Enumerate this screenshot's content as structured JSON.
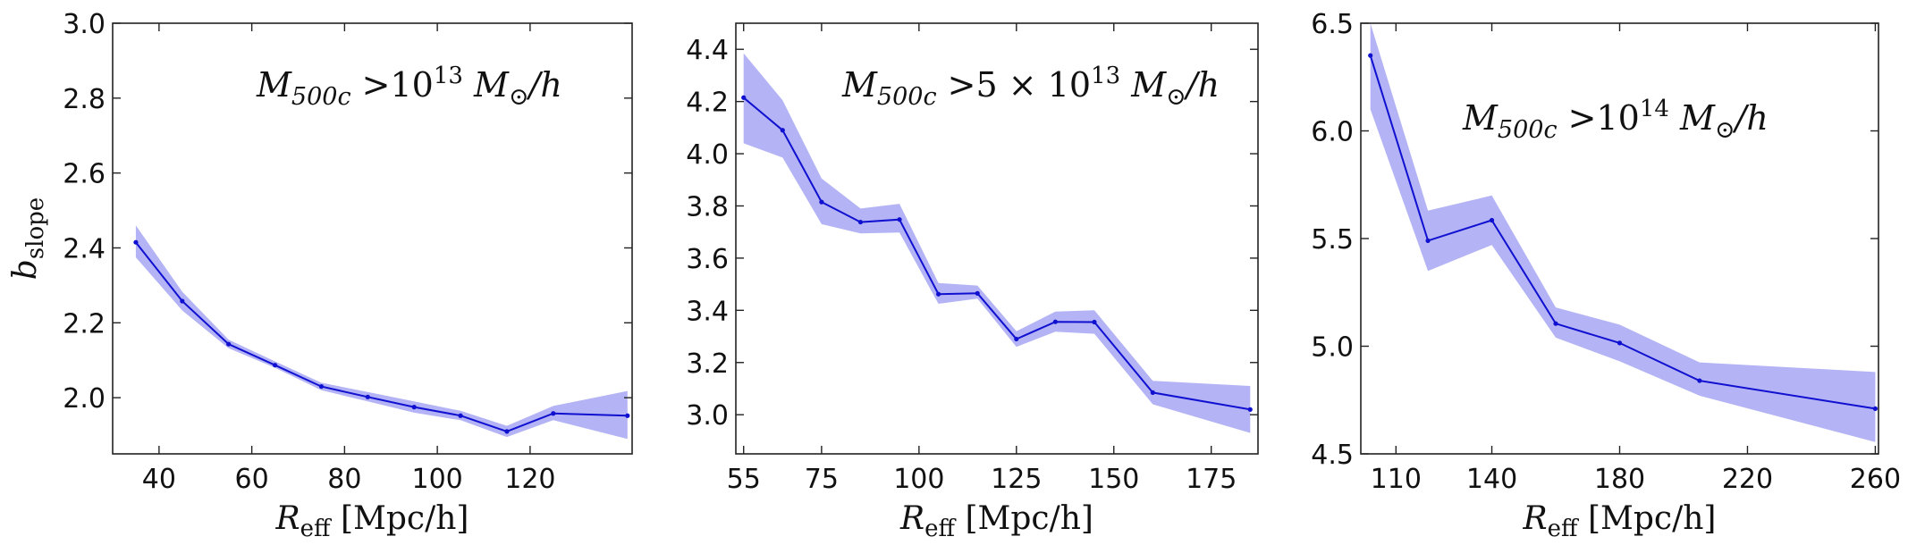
{
  "chart_data": [
    {
      "type": "line",
      "annotation": {
        "m": "M",
        "m_sub": "500c",
        "op": " >",
        "mant": "",
        "base": "10",
        "exp": "13",
        "unit_m": " M",
        "unit_sub": "⊙",
        "unit_rest": "/h"
      },
      "ylabel": {
        "var": "b",
        "sub": "slope"
      },
      "xlabel": {
        "var": "R",
        "sub": "eff",
        "unit": " [Mpc/h]"
      },
      "xlim": [
        30,
        142
      ],
      "ylim": [
        1.85,
        3.0
      ],
      "xticks": [
        40,
        60,
        80,
        100,
        120
      ],
      "yticks": [
        2.0,
        2.2,
        2.4,
        2.6,
        2.8,
        3.0
      ],
      "ytick_labels": [
        "2.0",
        "2.2",
        "2.4",
        "2.6",
        "2.8",
        "3.0"
      ],
      "series": [
        {
          "name": "b_slope",
          "x": [
            35,
            45,
            55,
            65,
            75,
            85,
            95,
            105,
            115,
            125,
            141
          ],
          "y": [
            2.415,
            2.258,
            2.143,
            2.087,
            2.03,
            2.002,
            1.975,
            1.952,
            1.91,
            1.958,
            1.952
          ],
          "lower": [
            2.375,
            2.233,
            2.132,
            2.08,
            2.02,
            1.99,
            1.96,
            1.94,
            1.895,
            1.94,
            1.89
          ],
          "upper": [
            2.46,
            2.283,
            2.155,
            2.097,
            2.04,
            2.015,
            1.99,
            1.965,
            1.925,
            1.978,
            2.018
          ]
        }
      ]
    },
    {
      "type": "line",
      "annotation": {
        "m": "M",
        "m_sub": "500c",
        "op": " >",
        "mant": "5 × ",
        "base": "10",
        "exp": "13",
        "unit_m": " M",
        "unit_sub": "⊙",
        "unit_rest": "/h"
      },
      "ylabel": null,
      "xlabel": {
        "var": "R",
        "sub": "eff",
        "unit": " [Mpc/h]"
      },
      "xlim": [
        53,
        187
      ],
      "ylim": [
        2.85,
        4.5
      ],
      "xticks": [
        55,
        75,
        100,
        125,
        150,
        175
      ],
      "yticks": [
        3.0,
        3.2,
        3.4,
        3.6,
        3.8,
        4.0,
        4.2,
        4.4
      ],
      "ytick_labels": [
        "3.0",
        "3.2",
        "3.4",
        "3.6",
        "3.8",
        "4.0",
        "4.2",
        "4.4"
      ],
      "series": [
        {
          "name": "b_slope",
          "x": [
            55,
            65,
            75,
            85,
            95,
            105,
            115,
            125,
            135,
            145,
            160,
            185
          ],
          "y": [
            4.215,
            4.09,
            3.815,
            3.738,
            3.748,
            3.462,
            3.465,
            3.29,
            3.356,
            3.355,
            3.085,
            3.02
          ],
          "lower": [
            4.04,
            3.985,
            3.73,
            3.695,
            3.698,
            3.425,
            3.445,
            3.26,
            3.318,
            3.31,
            3.04,
            2.93
          ],
          "upper": [
            4.385,
            4.205,
            3.905,
            3.79,
            3.808,
            3.505,
            3.495,
            3.32,
            3.395,
            3.4,
            3.13,
            3.11
          ]
        }
      ]
    },
    {
      "type": "line",
      "annotation": {
        "m": "M",
        "m_sub": "500c",
        "op": " >",
        "mant": "",
        "base": "10",
        "exp": "14",
        "unit_m": " M",
        "unit_sub": "⊙",
        "unit_rest": "/h"
      },
      "ylabel": null,
      "xlabel": {
        "var": "R",
        "sub": "eff",
        "unit": " [Mpc/h]"
      },
      "xlim": [
        99,
        261
      ],
      "ylim": [
        4.5,
        6.5
      ],
      "xticks": [
        110,
        140,
        180,
        220,
        260
      ],
      "yticks": [
        4.5,
        5.0,
        5.5,
        6.0,
        6.5
      ],
      "ytick_labels": [
        "4.5",
        "5.0",
        "5.5",
        "6.0",
        "6.5"
      ],
      "series": [
        {
          "name": "b_slope",
          "x": [
            102,
            120,
            140,
            160,
            180,
            205,
            260
          ],
          "y": [
            6.35,
            5.49,
            5.585,
            5.105,
            5.015,
            4.84,
            4.71
          ],
          "lower": [
            6.1,
            5.35,
            5.47,
            5.04,
            4.93,
            4.77,
            4.555
          ],
          "upper": [
            6.5,
            5.63,
            5.7,
            5.18,
            5.1,
            4.925,
            4.88
          ]
        }
      ]
    }
  ]
}
